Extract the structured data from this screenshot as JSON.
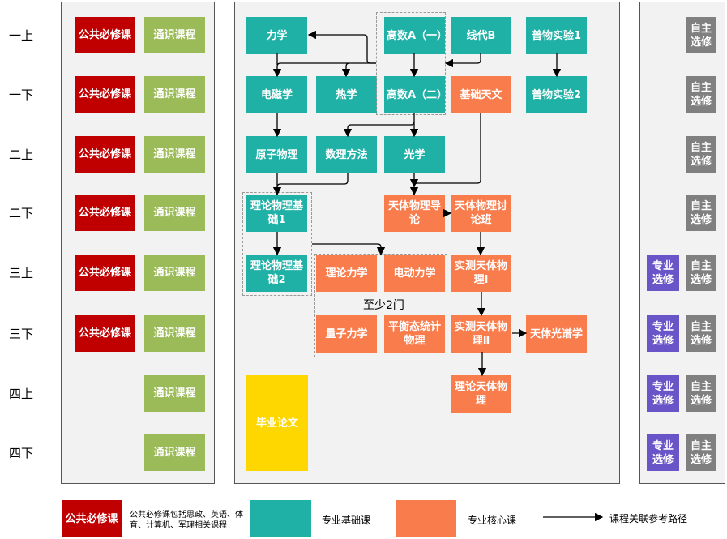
{
  "colors": {
    "public_required": "#C00000",
    "general": "#9BBB59",
    "foundation": "#1FB0A6",
    "core": "#F87C4C",
    "thesis": "#FFD700",
    "major_elective": "#6A55C8",
    "free_elective": "#808080"
  },
  "terms": [
    "一上",
    "一下",
    "二上",
    "二下",
    "三上",
    "三下",
    "四上",
    "四下"
  ],
  "left_panel": {
    "public_required_label": "公共必修课",
    "general_label": "通识课程"
  },
  "right_panel": {
    "major_elective_label": "专业选修",
    "free_elective_label": "自主选修"
  },
  "courses": {
    "mechanics": "力学",
    "calc_a1": "高数A（一）",
    "linear_b": "线代B",
    "lab1": "普物实验1",
    "em": "电磁学",
    "thermo": "热学",
    "calc_a2": "高数A（二）",
    "basic_astro": "基础天文",
    "lab2": "普物实验2",
    "atomic": "原子物理",
    "math_methods": "数理方法",
    "optics": "光学",
    "theo_found1": "理论物理基础1",
    "astro_intro": "天体物理导论",
    "astro_seminar": "天体物理讨论班",
    "theo_found2": "理论物理基础2",
    "theo_mech": "理论力学",
    "electrodyn": "电动力学",
    "obs_astro1": "实测天体物理Ⅰ",
    "quantum": "量子力学",
    "stat_phys": "平衡态统计物理",
    "obs_astro2": "实测天体物理Ⅱ",
    "spectroscopy": "天体光谱学",
    "theo_astro": "理论天体物理",
    "thesis": "毕业论文"
  },
  "elective_group_note": "至少2门",
  "legend": {
    "public_required_label": "公共必修课",
    "public_required_desc": "公共必修课包括思政、英语、体育、计算机、军理相关课程",
    "foundation": "专业基础课",
    "core": "专业核心课",
    "arrow": "课程关联参考路径"
  }
}
